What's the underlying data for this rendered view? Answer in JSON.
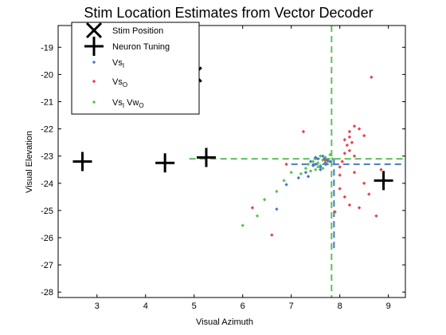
{
  "chart_data": {
    "type": "scatter",
    "title": "Stim Location Estimates from Vector Decoder",
    "xlabel": "Visual Azimuth",
    "ylabel": "Visual Elevation",
    "xlim": [
      2.2,
      9.35
    ],
    "ylim": [
      -28.2,
      -18.2
    ],
    "xticks": [
      "3",
      "4",
      "5",
      "6",
      "7",
      "8",
      "9"
    ],
    "xtick_values": [
      3,
      4,
      5,
      6,
      7,
      8,
      9
    ],
    "yticks": [
      "-19",
      "-20",
      "-21",
      "-22",
      "-23",
      "-24",
      "-25",
      "-26",
      "-27",
      "-28"
    ],
    "ytick_values": [
      -19,
      -20,
      -21,
      -22,
      -23,
      -24,
      -25,
      -26,
      -27,
      -28
    ],
    "grid": false,
    "legend_position": "top-left",
    "colors": {
      "stim": "#000000",
      "neuron": "#000000",
      "vs_i": "#4a78c4",
      "vs_o": "#e8414a",
      "vs_combo": "#5cc15c"
    },
    "series": [
      {
        "key": "stim",
        "name": "Stim Position",
        "marker": "x",
        "color": "#000000",
        "points": [
          [
            5.0,
            -20.0
          ]
        ]
      },
      {
        "key": "neuron",
        "name": "Neuron Tuning",
        "marker": "+",
        "color": "#000000",
        "points": [
          [
            2.7,
            -23.2
          ],
          [
            4.4,
            -23.25
          ],
          [
            5.25,
            -23.05
          ],
          [
            8.9,
            -23.9
          ]
        ]
      },
      {
        "key": "vs_i",
        "name": "Vs",
        "name_sub": "I",
        "marker": "dot",
        "color": "#4a78c4",
        "points": [
          [
            6.7,
            -24.95
          ],
          [
            6.9,
            -24.05
          ],
          [
            7.15,
            -23.8
          ],
          [
            7.3,
            -23.6
          ],
          [
            7.4,
            -23.2
          ],
          [
            7.5,
            -23.3
          ],
          [
            7.55,
            -23.1
          ],
          [
            7.6,
            -23.4
          ],
          [
            7.65,
            -23.0
          ],
          [
            7.7,
            -23.25
          ],
          [
            7.75,
            -23.15
          ],
          [
            7.6,
            -23.5
          ],
          [
            7.5,
            -23.05
          ],
          [
            7.45,
            -23.35
          ],
          [
            7.35,
            -23.75
          ],
          [
            7.8,
            -23.2
          ],
          [
            7.72,
            -23.3
          ],
          [
            7.68,
            -23.1
          ]
        ]
      },
      {
        "key": "vs_o",
        "name": "Vs",
        "name_sub": "O",
        "marker": "dot",
        "color": "#e8414a",
        "points": [
          [
            8.65,
            -20.1
          ],
          [
            7.25,
            -22.1
          ],
          [
            7.7,
            -23.15
          ],
          [
            8.1,
            -22.9
          ],
          [
            8.2,
            -22.1
          ],
          [
            8.3,
            -21.9
          ],
          [
            8.4,
            -22.0
          ],
          [
            8.5,
            -22.25
          ],
          [
            8.2,
            -22.3
          ],
          [
            8.25,
            -22.5
          ],
          [
            8.15,
            -22.6
          ],
          [
            8.1,
            -22.4
          ],
          [
            8.2,
            -22.8
          ],
          [
            8.3,
            -23.0
          ],
          [
            8.05,
            -23.2
          ],
          [
            8.0,
            -23.4
          ],
          [
            8.0,
            -23.7
          ],
          [
            8.3,
            -23.6
          ],
          [
            8.5,
            -24.0
          ],
          [
            8.6,
            -24.4
          ],
          [
            8.1,
            -24.5
          ],
          [
            8.2,
            -24.8
          ],
          [
            8.85,
            -23.5
          ],
          [
            8.75,
            -25.2
          ],
          [
            8.4,
            -24.9
          ],
          [
            6.9,
            -23.3
          ],
          [
            6.2,
            -24.9
          ],
          [
            6.6,
            -25.9
          ],
          [
            7.9,
            -25.05
          ],
          [
            8.0,
            -24.2
          ]
        ]
      },
      {
        "key": "vs_combo",
        "name": "Vs",
        "name_sub": "I",
        "name_suffix": "  Vw",
        "name_suffix_sub": "O",
        "marker": "dot",
        "color": "#5cc15c",
        "points": [
          [
            6.0,
            -25.55
          ],
          [
            6.3,
            -25.2
          ],
          [
            6.45,
            -24.6
          ],
          [
            6.7,
            -24.3
          ],
          [
            6.85,
            -23.9
          ],
          [
            7.0,
            -23.6
          ],
          [
            7.2,
            -23.65
          ],
          [
            7.3,
            -23.45
          ],
          [
            7.35,
            -23.3
          ],
          [
            7.45,
            -23.2
          ],
          [
            7.5,
            -23.1
          ],
          [
            7.55,
            -23.25
          ],
          [
            7.6,
            -23.0
          ],
          [
            7.65,
            -23.15
          ],
          [
            7.7,
            -23.05
          ],
          [
            7.75,
            -23.2
          ],
          [
            7.8,
            -22.95
          ],
          [
            7.85,
            -23.1
          ],
          [
            7.6,
            -23.35
          ],
          [
            7.55,
            -23.4
          ],
          [
            7.65,
            -23.45
          ],
          [
            7.7,
            -23.3
          ],
          [
            7.5,
            -23.5
          ],
          [
            7.4,
            -23.55
          ]
        ]
      }
    ],
    "reference_lines": [
      {
        "orientation": "vertical",
        "value": 7.88,
        "from": -23.1,
        "to": -26.5,
        "color": "#4a78c4",
        "style": "dashed"
      },
      {
        "orientation": "horizontal",
        "value": -23.3,
        "from": 7.0,
        "to": 9.35,
        "color": "#4a78c4",
        "style": "dashed"
      },
      {
        "orientation": "vertical",
        "value": 7.83,
        "from": -18.2,
        "to": -28.2,
        "color": "#5cc15c",
        "style": "dashed"
      },
      {
        "orientation": "horizontal",
        "value": -23.1,
        "from": 4.9,
        "to": 9.35,
        "color": "#5cc15c",
        "style": "dashed"
      }
    ]
  }
}
